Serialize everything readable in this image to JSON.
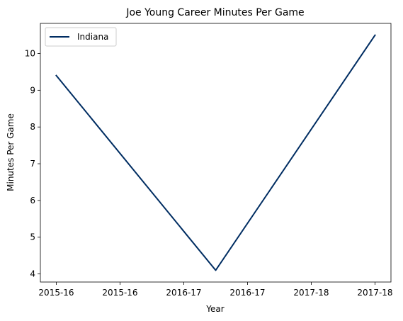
{
  "chart_data": {
    "type": "line",
    "title": "Joe Young  Career Minutes Per Game",
    "xlabel": "Year",
    "ylabel": "Minutes Per Game",
    "x_ticks": [
      {
        "pos": 0,
        "label": "2015-16"
      },
      {
        "pos": 0.5,
        "label": "2015-16"
      },
      {
        "pos": 1,
        "label": "2016-17"
      },
      {
        "pos": 1.5,
        "label": "2016-17"
      },
      {
        "pos": 2,
        "label": "2017-18"
      },
      {
        "pos": 2.5,
        "label": "2017-18"
      }
    ],
    "y_ticks": [
      4,
      5,
      6,
      7,
      8,
      9,
      10
    ],
    "xlim": [
      -0.125,
      2.625
    ],
    "ylim": [
      3.78,
      10.82
    ],
    "grid": false,
    "legend": {
      "placement": "upper-left"
    },
    "series": [
      {
        "name": "Indiana",
        "color": "#002D62",
        "x": [
          0,
          1.25,
          2.5
        ],
        "y": [
          9.4,
          4.1,
          10.5
        ]
      }
    ]
  }
}
